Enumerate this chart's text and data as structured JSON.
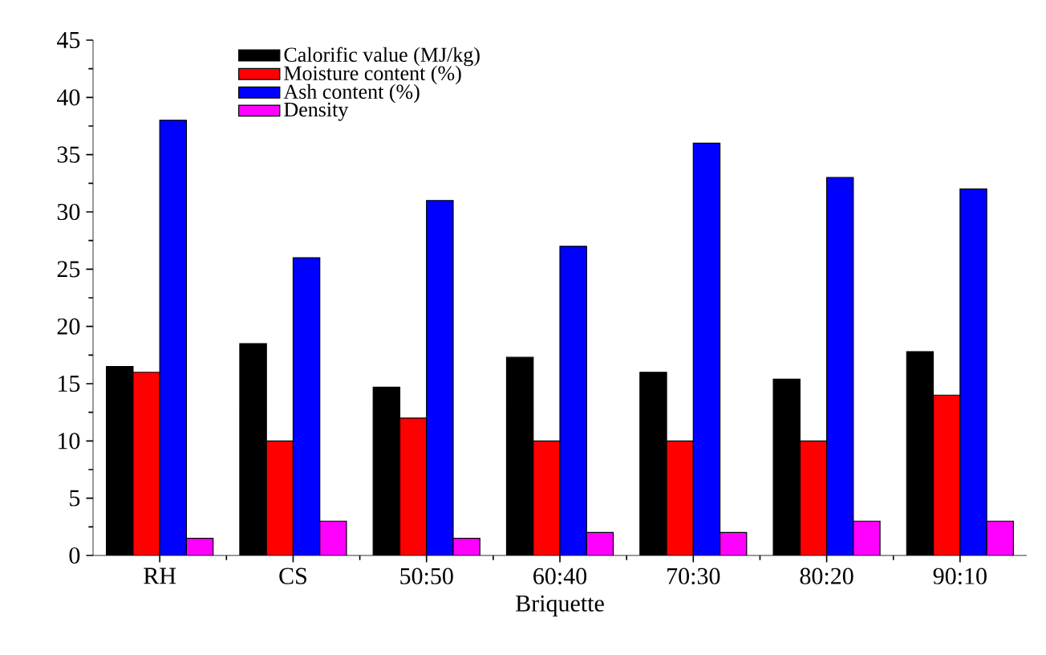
{
  "chart_data": {
    "type": "bar",
    "xlabel": "Briquette",
    "categories": [
      "RH",
      "CS",
      "50:50",
      "60:40",
      "70:30",
      "80:20",
      "90:10"
    ],
    "series": [
      {
        "name": "Calorific value (MJ/kg)",
        "color": "#000000",
        "values": [
          16.5,
          18.5,
          14.7,
          17.3,
          16,
          15.4,
          17.8
        ]
      },
      {
        "name": "Moisture content (%)",
        "color": "#ff0000",
        "values": [
          16,
          10,
          12,
          10,
          10,
          10,
          14
        ]
      },
      {
        "name": "Ash content (%)",
        "color": "#0000ff",
        "values": [
          38,
          26,
          31,
          27,
          36,
          33,
          32
        ]
      },
      {
        "name": "Density",
        "color": "#ff00ff",
        "values": [
          1.5,
          3,
          1.5,
          2,
          2,
          3,
          3
        ]
      }
    ],
    "ylim": [
      0,
      45
    ],
    "yticks": [
      0,
      5,
      10,
      15,
      20,
      25,
      30,
      35,
      40,
      45
    ],
    "grid": false,
    "legend": "top left"
  }
}
